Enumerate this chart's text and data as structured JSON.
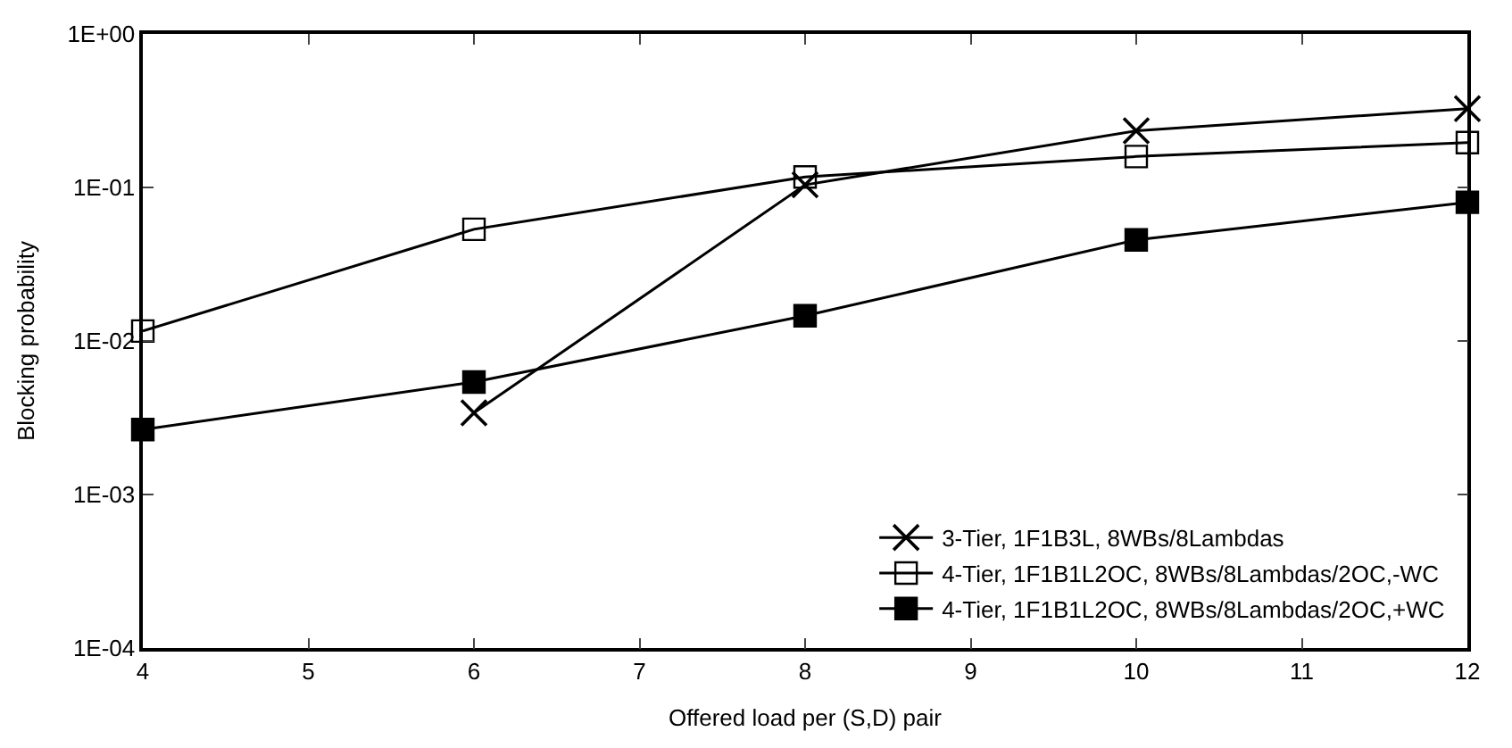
{
  "chart_data": {
    "type": "line",
    "xlabel": "Offered load per (S,D) pair",
    "ylabel": "Blocking probability",
    "log": "y",
    "x": [
      4,
      6,
      8,
      10,
      12
    ],
    "series": [
      {
        "name": "3-Tier, 1F1B3L, 8WBs/8Lambdas",
        "color": "#000000",
        "marker": "cross",
        "values": [
          null,
          0.0034,
          0.104,
          0.234,
          0.326
        ]
      },
      {
        "name": "4-Tier, 1F1B1L2OC, 8WBs/8Lambdas/2OC,-WC",
        "color": "#000000",
        "marker": "square-open",
        "values": [
          0.0116,
          0.0534,
          0.117,
          0.159,
          0.196
        ]
      },
      {
        "name": "4-Tier, 1F1B1L2OC, 8WBs/8Lambdas/2OC,+WC",
        "color": "#000000",
        "marker": "square",
        "values": [
          0.00265,
          0.0054,
          0.0146,
          0.0455,
          0.08
        ]
      }
    ],
    "xlim": [
      4,
      12
    ],
    "xticks": [
      4,
      5,
      6,
      7,
      8,
      9,
      10,
      11,
      12
    ],
    "ylim": [
      0.0001,
      1
    ],
    "yticks": [
      {
        "value": 1,
        "label": "1E+00"
      },
      {
        "value": 0.1,
        "label": "1E-01"
      },
      {
        "value": 0.01,
        "label": "1E-02"
      },
      {
        "value": 0.001,
        "label": "1E-03"
      },
      {
        "value": 0.0001,
        "label": "1E-04"
      }
    ],
    "legend": "bottom right",
    "line_style": "solid"
  }
}
